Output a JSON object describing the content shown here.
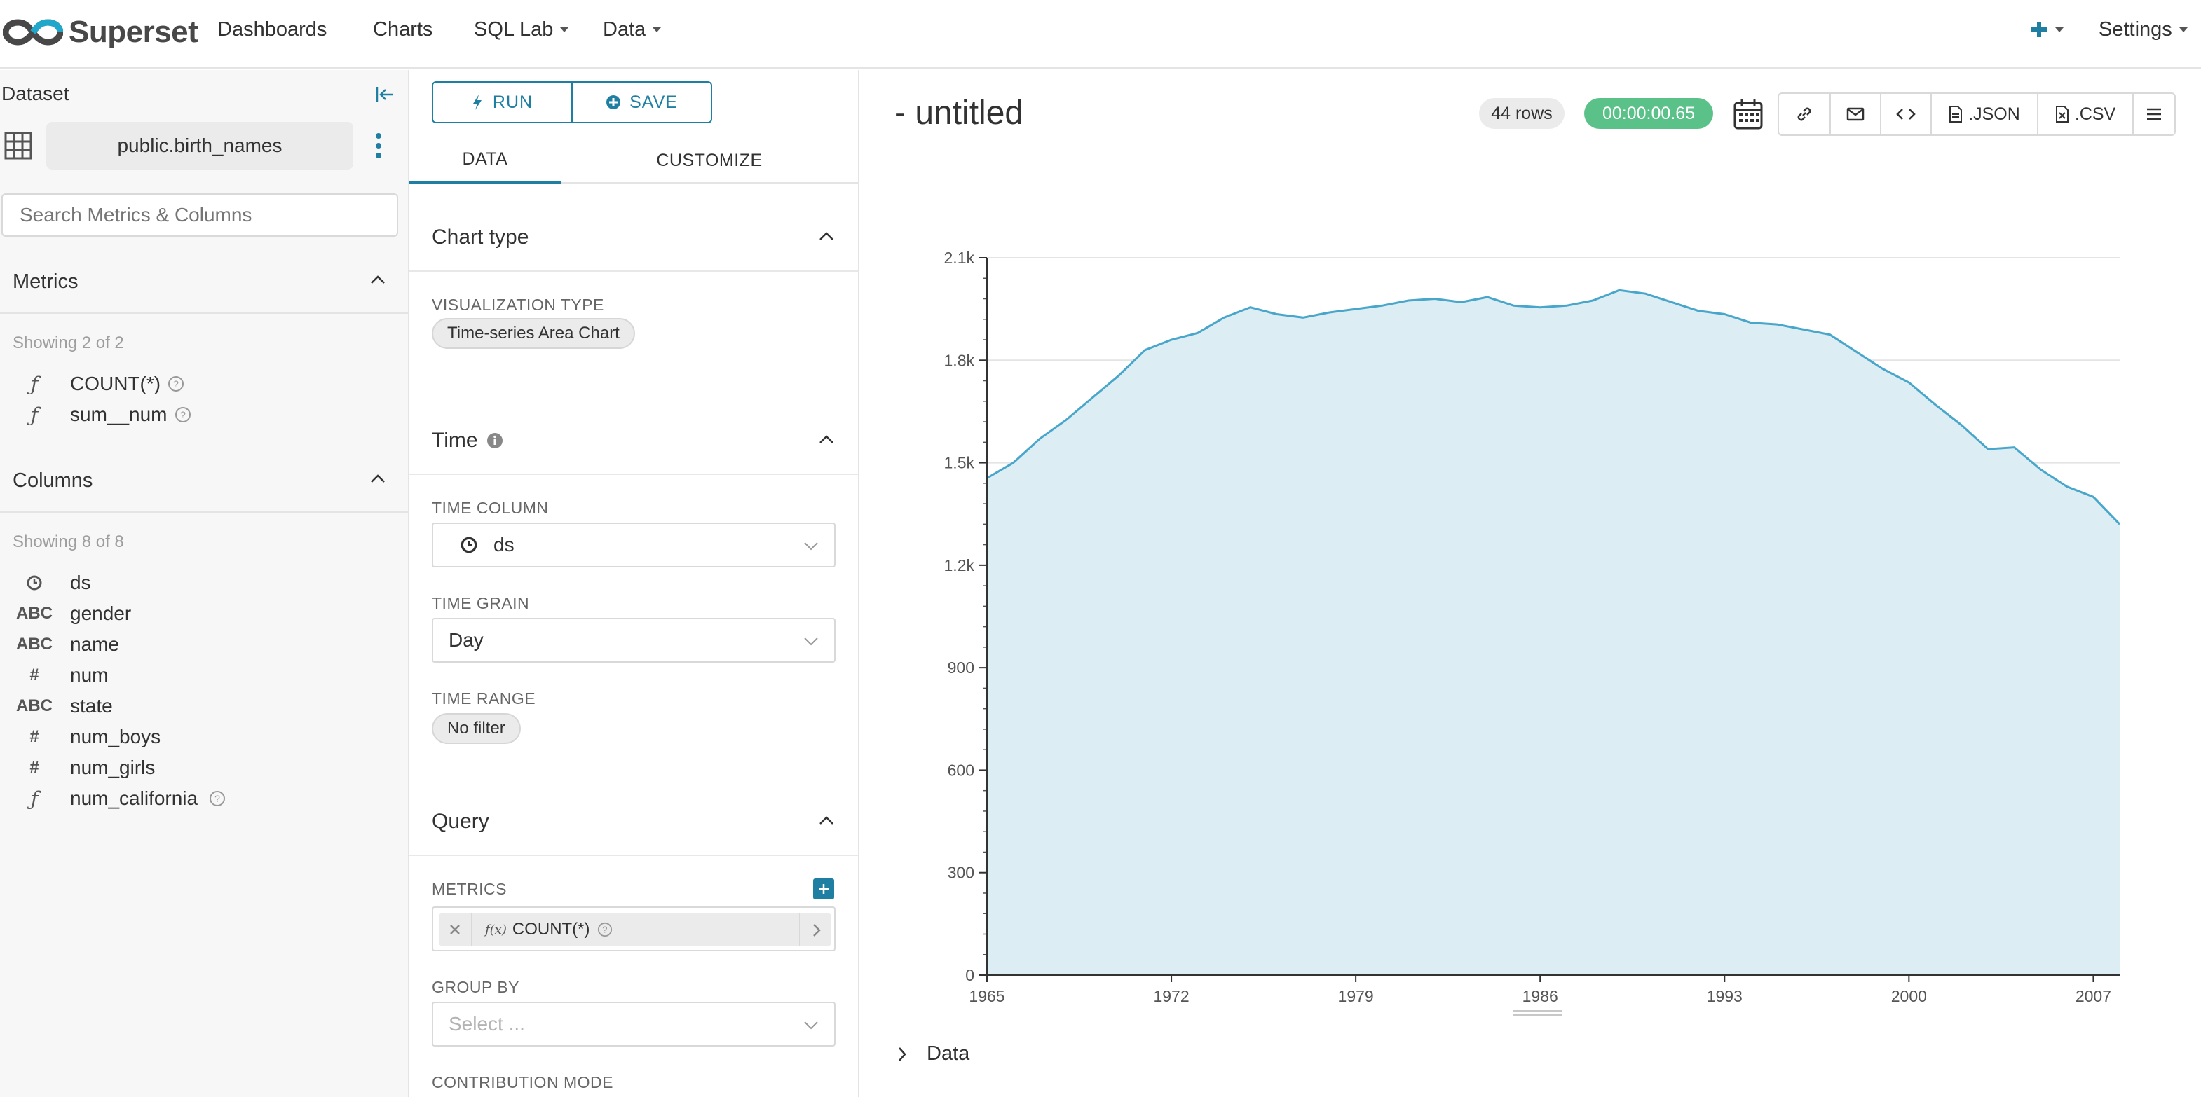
{
  "nav": {
    "brand": "Superset",
    "items": [
      "Dashboards",
      "Charts",
      "SQL Lab",
      "Data"
    ],
    "settings": "Settings"
  },
  "dataset_panel": {
    "heading": "Dataset",
    "dataset_name": "public.birth_names",
    "search_placeholder": "Search Metrics & Columns",
    "metrics_title": "Metrics",
    "metrics_showing": "Showing 2 of 2",
    "metrics": [
      {
        "type": "ƒ",
        "name": "COUNT(*)"
      },
      {
        "type": "ƒ",
        "name": "sum__num"
      }
    ],
    "columns_title": "Columns",
    "columns_showing": "Showing 8 of 8",
    "columns": [
      {
        "type": "clock",
        "name": "ds"
      },
      {
        "type": "ABC",
        "name": "gender"
      },
      {
        "type": "ABC",
        "name": "name"
      },
      {
        "type": "#",
        "name": "num"
      },
      {
        "type": "ABC",
        "name": "state"
      },
      {
        "type": "#",
        "name": "num_boys"
      },
      {
        "type": "#",
        "name": "num_girls"
      },
      {
        "type": "ƒ",
        "name": "num_california"
      }
    ]
  },
  "control_panel": {
    "run_label": "RUN",
    "save_label": "SAVE",
    "tab_data": "DATA",
    "tab_customize": "CUSTOMIZE",
    "chart_type_title": "Chart type",
    "viz_type_label": "VISUALIZATION TYPE",
    "viz_type_value": "Time-series Area Chart",
    "time_title": "Time",
    "time_column_label": "TIME COLUMN",
    "time_column_value": "ds",
    "time_grain_label": "TIME GRAIN",
    "time_grain_value": "Day",
    "time_range_label": "TIME RANGE",
    "time_range_value": "No filter",
    "query_title": "Query",
    "metrics_label": "METRICS",
    "metric_value": "COUNT(*)",
    "metric_fx": "f(x)",
    "group_by_label": "GROUP BY",
    "group_by_placeholder": "Select ...",
    "contribution_label": "CONTRIBUTION MODE"
  },
  "chart_panel": {
    "title": "- untitled",
    "rows": "44 rows",
    "timer": "00:00:00.65",
    "json_label": ".JSON",
    "csv_label": ".CSV",
    "data_toggle": "Data"
  },
  "colors": {
    "accent": "#1f7fa3",
    "area_fill": "#dcedf4",
    "area_line": "#48a6cb",
    "timer_green": "#5ac189"
  },
  "chart_data": {
    "type": "area",
    "x": [
      1965,
      1966,
      1967,
      1968,
      1969,
      1970,
      1971,
      1972,
      1973,
      1974,
      1975,
      1976,
      1977,
      1978,
      1979,
      1980,
      1981,
      1982,
      1983,
      1984,
      1985,
      1986,
      1987,
      1988,
      1989,
      1990,
      1991,
      1992,
      1993,
      1994,
      1995,
      1996,
      1997,
      1998,
      1999,
      2000,
      2001,
      2002,
      2003,
      2004,
      2005,
      2006,
      2007,
      2008
    ],
    "series": [
      {
        "values": [
          1455,
          1500,
          1570,
          1625,
          1690,
          1755,
          1830,
          1860,
          1880,
          1925,
          1955,
          1935,
          1925,
          1940,
          1950,
          1960,
          1975,
          1980,
          1970,
          1985,
          1960,
          1955,
          1960,
          1975,
          2005,
          1995,
          1970,
          1945,
          1935,
          1910,
          1905,
          1890,
          1875,
          1825,
          1775,
          1735,
          1670,
          1610,
          1540,
          1545,
          1480,
          1430,
          1400,
          1320
        ]
      }
    ],
    "x_ticks": [
      "1965",
      "1972",
      "1979",
      "1986",
      "1993",
      "2000",
      "2007"
    ],
    "y_ticks": [
      "0",
      "300",
      "600",
      "900",
      "1.2k",
      "1.5k",
      "1.8k",
      "2.1k"
    ],
    "y_tick_values": [
      0,
      300,
      600,
      900,
      1200,
      1500,
      1800,
      2100
    ],
    "xlim": [
      1965,
      2008
    ],
    "ylim": [
      0,
      2100
    ],
    "grid": true
  }
}
